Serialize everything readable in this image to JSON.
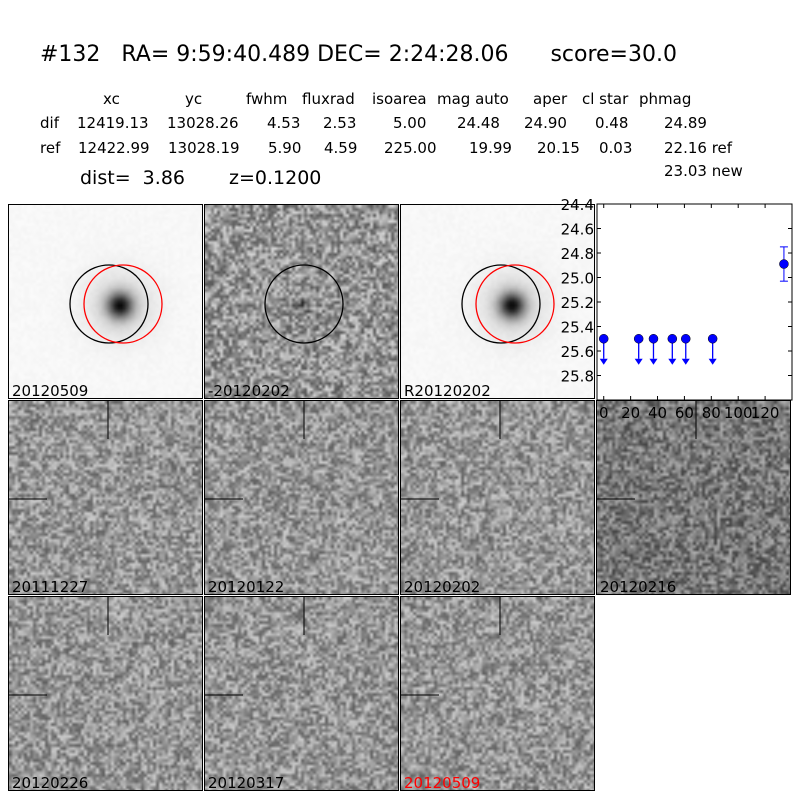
{
  "title": "#132   RA= 9:59:40.489 DEC= 2:24:28.06      score=30.0",
  "table": {
    "headers": [
      "xc",
      "yc",
      "fwhm",
      "fluxrad",
      "isoarea",
      "mag auto",
      "aper",
      "cl star",
      "phmag"
    ],
    "rows": [
      {
        "label": "dif",
        "values": [
          "12419.13",
          "13028.26",
          "4.53",
          "2.53",
          "5.00",
          "24.48",
          "24.90",
          "0.48",
          "24.89"
        ]
      },
      {
        "label": "ref",
        "values": [
          "12422.99",
          "13028.19",
          "5.90",
          "4.59",
          "225.00",
          "19.99",
          "20.15",
          "0.03",
          "22.16 ref"
        ]
      }
    ],
    "extra": "23.03 new",
    "dist": "dist=  3.86",
    "z": "z=0.1200"
  },
  "stamps": [
    {
      "label": "20120509",
      "kind": "new",
      "circles": [
        "black",
        "red"
      ]
    },
    {
      "label": "-20120202",
      "kind": "diff",
      "circles": [
        "black"
      ]
    },
    {
      "label": "R20120202",
      "kind": "ref",
      "circles": [
        "black",
        "red"
      ]
    },
    {
      "label": "20111227",
      "kind": "noise"
    },
    {
      "label": "20120122",
      "kind": "noise"
    },
    {
      "label": "20120202",
      "kind": "noise"
    },
    {
      "label": "20120216",
      "kind": "noise"
    },
    {
      "label": "20120226",
      "kind": "noise"
    },
    {
      "label": "20120317",
      "kind": "noise"
    },
    {
      "label": "20120509",
      "kind": "noise",
      "label_color": "#ff0000"
    }
  ],
  "chart_data": {
    "type": "scatter",
    "xlim": [
      -5,
      140
    ],
    "ylim": [
      26.0,
      24.4
    ],
    "y_inverted": true,
    "xticks": [
      "0",
      "20",
      "40",
      "60",
      "80",
      "100",
      "120"
    ],
    "yticks": [
      "24.4",
      "24.6",
      "24.8",
      "25.0",
      "25.2",
      "25.4",
      "25.6",
      "25.8"
    ],
    "color": "#0000ff",
    "upper_limits": [
      {
        "x": 0,
        "y": 25.5
      },
      {
        "x": 26,
        "y": 25.5
      },
      {
        "x": 37,
        "y": 25.5
      },
      {
        "x": 51,
        "y": 25.5
      },
      {
        "x": 61,
        "y": 25.5
      },
      {
        "x": 81,
        "y": 25.5
      }
    ],
    "detections": [
      {
        "x": 134,
        "y": 24.89,
        "err": 0.14
      }
    ]
  }
}
